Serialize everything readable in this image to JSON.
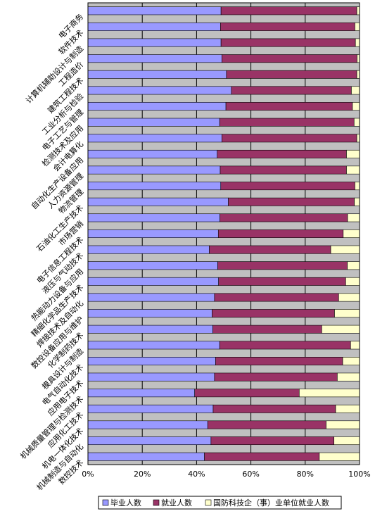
{
  "chart_data": {
    "type": "bar",
    "orientation": "horizontal",
    "stacking": "percent",
    "categories": [
      "电子商务",
      "软件技术",
      "计算机辅助设计与制造",
      "工程造价",
      "建筑工程技术",
      "工业分析与检验",
      "电子工艺与管理",
      "检测技术及应用",
      "会计电算化",
      "自动化生产设备应用",
      "人力资源管理",
      "物流管理",
      "石油化工生产技术",
      "市场营销",
      "电子信息工程技术",
      "液压与气动技术",
      "热能动力设备与应用",
      "精细化学品生产技术",
      "焊接技术及自动化",
      "数控设备应用与维护",
      "化学制药技术",
      "模具设计与制造",
      "电气自动化技术",
      "应用电子技术",
      "机械质量管理与检测技术",
      "应用化工技术",
      "机电一体化技术",
      "机械制造与自动化",
      "数控技术"
    ],
    "series": [
      {
        "name": "毕业人数",
        "color": "#9999ff",
        "values": [
          49,
          48.8,
          49,
          49.3,
          51,
          52.8,
          50.8,
          48.5,
          49.3,
          47.6,
          48.7,
          48.9,
          51.7,
          48.6,
          48,
          44.7,
          47.8,
          48.1,
          46.6,
          45.7,
          46,
          48.5,
          47,
          46.6,
          39.3,
          46.1,
          44.1,
          45.3,
          42.9
        ]
      },
      {
        "name": "就业人数",
        "color": "#993366",
        "values": [
          50,
          49.5,
          49.5,
          49.8,
          48,
          44.2,
          46.6,
          49.5,
          49.7,
          47.6,
          46.5,
          49.4,
          46.4,
          47,
          46,
          44.7,
          47.7,
          46.8,
          45.7,
          45.1,
          40.1,
          48.2,
          46.8,
          45.2,
          38.5,
          45.1,
          43.6,
          45.3,
          42.3
        ]
      },
      {
        "name": "国防科技企（事）业单位就业人数",
        "color": "#ffffcc",
        "values": [
          1,
          1.7,
          1.5,
          0.9,
          1,
          3,
          2.6,
          2,
          1,
          4.8,
          4.8,
          1.7,
          1.9,
          4.4,
          6,
          10.6,
          4.5,
          5.1,
          7.7,
          9.2,
          13.9,
          3.3,
          6.2,
          8.2,
          22.2,
          8.8,
          12.3,
          9.4,
          14.8
        ]
      }
    ],
    "x_ticks": [
      "0%",
      "20%",
      "40%",
      "60%",
      "80%",
      "100%"
    ],
    "xlim": [
      0,
      100
    ],
    "grid": true,
    "legend_position": "bottom",
    "plot_background": "#c0c0c0",
    "gridline_color": "#000000"
  }
}
